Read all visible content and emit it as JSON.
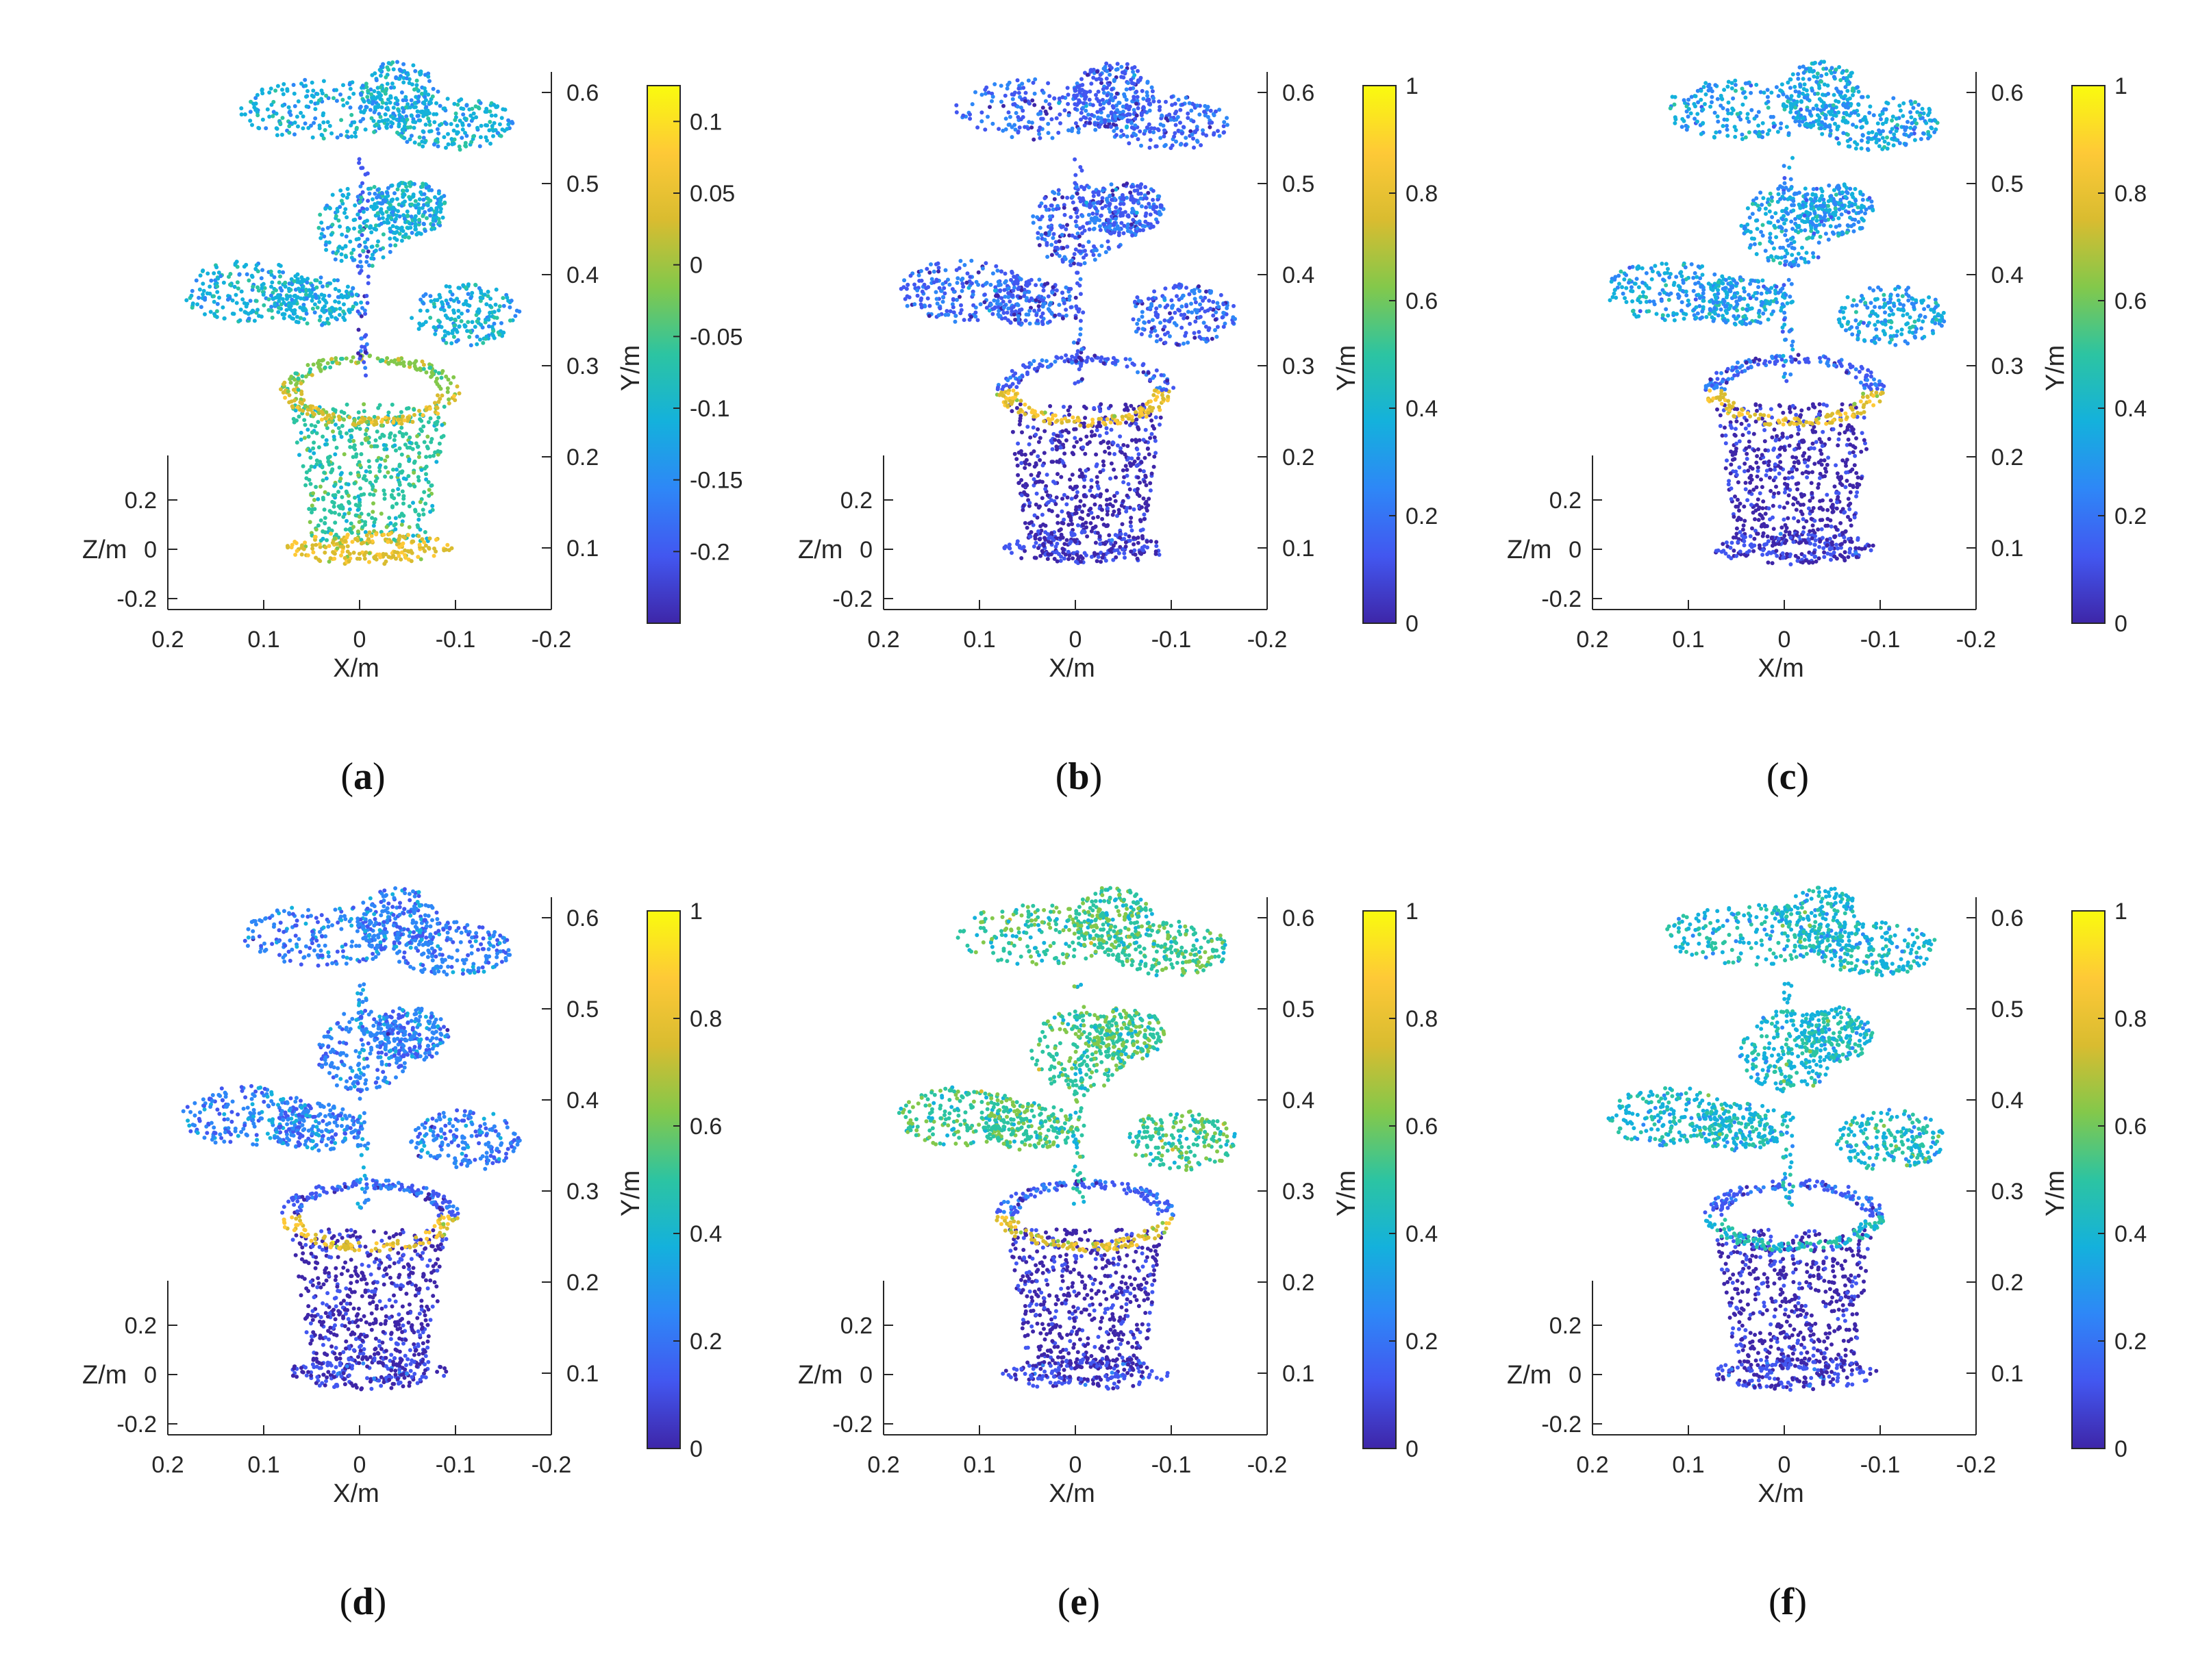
{
  "chart_data": [
    {
      "type": "scatter",
      "subtype": "3d-point-cloud",
      "panel": "a",
      "caption": "a",
      "xlabel": "X/m",
      "ylabel": "Y/m",
      "zlabel": "Z/m",
      "x_ticks": [
        "0.2",
        "0.1",
        "0",
        "-0.1",
        "-0.2"
      ],
      "y_ticks": [
        "0.1",
        "0.2",
        "0.3",
        "0.4",
        "0.5",
        "0.6"
      ],
      "z_ticks": [
        "0.2",
        "0",
        "-0.2"
      ],
      "colorbar": {
        "label": "Y/m",
        "range": [
          -0.25,
          0.125
        ],
        "ticks": [
          "0.1",
          "0.05",
          "0",
          "-0.05",
          "-0.1",
          "-0.15",
          "-0.2"
        ],
        "tick_values": [
          0.1,
          0.05,
          0,
          -0.05,
          -0.1,
          -0.15,
          -0.2
        ]
      },
      "colormap": [
        "#3e26a8",
        "#4257f0",
        "#2e87f7",
        "#14b1dc",
        "#2cc4a2",
        "#83c84b",
        "#d9bc30",
        "#fec937",
        "#f9fb0e"
      ],
      "colors": {
        "leaves": 3,
        "stem": 1,
        "pot_rim": 6,
        "pot_body": 4,
        "saucer": 6
      }
    },
    {
      "type": "scatter",
      "subtype": "3d-point-cloud",
      "panel": "b",
      "caption": "b",
      "xlabel": "X/m",
      "ylabel": "Y/m",
      "zlabel": "Z/m",
      "x_ticks": [
        "0.2",
        "0.1",
        "0",
        "-0.1",
        "-0.2"
      ],
      "y_ticks": [
        "0.1",
        "0.2",
        "0.3",
        "0.4",
        "0.5",
        "0.6"
      ],
      "z_ticks": [
        "0.2",
        "0",
        "-0.2"
      ],
      "colorbar": {
        "label": "Y/m",
        "range": [
          0,
          1
        ],
        "ticks": [
          "1",
          "0.8",
          "0.6",
          "0.4",
          "0.2",
          "0"
        ],
        "tick_values": [
          1,
          0.8,
          0.6,
          0.4,
          0.2,
          0
        ]
      },
      "colormap": [
        "#3e26a8",
        "#4257f0",
        "#2e87f7",
        "#14b1dc",
        "#2cc4a2",
        "#83c84b",
        "#d9bc30",
        "#fec937",
        "#f9fb0e"
      ],
      "colors": {
        "leaves": 1.3,
        "stem": 1,
        "pot_rim": 6.5,
        "pot_body": 0.2,
        "saucer": 0.3
      }
    },
    {
      "type": "scatter",
      "subtype": "3d-point-cloud",
      "panel": "c",
      "caption": "c",
      "xlabel": "X/m",
      "ylabel": "Y/m",
      "zlabel": "Z/m",
      "x_ticks": [
        "0.2",
        "0.1",
        "0",
        "-0.1",
        "-0.2"
      ],
      "y_ticks": [
        "0.1",
        "0.2",
        "0.3",
        "0.4",
        "0.5",
        "0.6"
      ],
      "z_ticks": [
        "0.2",
        "0",
        "-0.2"
      ],
      "colorbar": {
        "label": "Y/m",
        "range": [
          0,
          1
        ],
        "ticks": [
          "1",
          "0.8",
          "0.6",
          "0.4",
          "0.2",
          "0"
        ],
        "tick_values": [
          1,
          0.8,
          0.6,
          0.4,
          0.2,
          0
        ]
      },
      "colormap": [
        "#3e26a8",
        "#4257f0",
        "#2e87f7",
        "#14b1dc",
        "#2cc4a2",
        "#83c84b",
        "#d9bc30",
        "#fec937",
        "#f9fb0e"
      ],
      "colors": {
        "leaves": 2.6,
        "stem": 2.2,
        "pot_rim": 6.3,
        "pot_body": 0.2,
        "saucer": 0.3
      }
    },
    {
      "type": "scatter",
      "subtype": "3d-point-cloud",
      "panel": "d",
      "caption": "d",
      "xlabel": "X/m",
      "ylabel": "Y/m",
      "zlabel": "Z/m",
      "x_ticks": [
        "0.2",
        "0.1",
        "0",
        "-0.1",
        "-0.2"
      ],
      "y_ticks": [
        "0.1",
        "0.2",
        "0.3",
        "0.4",
        "0.5",
        "0.6"
      ],
      "z_ticks": [
        "0.2",
        "0",
        "-0.2"
      ],
      "colorbar": {
        "label": "Y/m",
        "range": [
          0,
          1
        ],
        "ticks": [
          "1",
          "0.8",
          "0.6",
          "0.4",
          "0.2",
          "0"
        ],
        "tick_values": [
          1,
          0.8,
          0.6,
          0.4,
          0.2,
          0
        ]
      },
      "colormap": [
        "#3e26a8",
        "#4257f0",
        "#2e87f7",
        "#14b1dc",
        "#2cc4a2",
        "#83c84b",
        "#d9bc30",
        "#fec937",
        "#f9fb0e"
      ],
      "colors": {
        "leaves": 1.8,
        "stem": 2.4,
        "pot_rim": 6.4,
        "pot_body": 0.2,
        "saucer": 0.3
      }
    },
    {
      "type": "scatter",
      "subtype": "3d-point-cloud",
      "panel": "e",
      "caption": "e",
      "xlabel": "X/m",
      "ylabel": "Y/m",
      "zlabel": "Z/m",
      "x_ticks": [
        "0.2",
        "0.1",
        "0",
        "-0.1",
        "-0.2"
      ],
      "y_ticks": [
        "0.1",
        "0.2",
        "0.3",
        "0.4",
        "0.5",
        "0.6"
      ],
      "z_ticks": [
        "0.2",
        "0",
        "-0.2"
      ],
      "colorbar": {
        "label": "Y/m",
        "range": [
          0,
          1
        ],
        "ticks": [
          "1",
          "0.8",
          "0.6",
          "0.4",
          "0.2",
          "0"
        ],
        "tick_values": [
          1,
          0.8,
          0.6,
          0.4,
          0.2,
          0
        ]
      },
      "colormap": [
        "#3e26a8",
        "#4257f0",
        "#2e87f7",
        "#14b1dc",
        "#2cc4a2",
        "#83c84b",
        "#d9bc30",
        "#fec937",
        "#f9fb0e"
      ],
      "colors": {
        "leaves": 4.2,
        "stem": 4,
        "pot_rim": 6,
        "pot_body": 0.2,
        "saucer": 0.3
      }
    },
    {
      "type": "scatter",
      "subtype": "3d-point-cloud",
      "panel": "f",
      "caption": "f",
      "xlabel": "X/m",
      "ylabel": "Y/m",
      "zlabel": "Z/m",
      "x_ticks": [
        "0.2",
        "0.1",
        "0",
        "-0.1",
        "-0.2"
      ],
      "y_ticks": [
        "0.1",
        "0.2",
        "0.3",
        "0.4",
        "0.5",
        "0.6"
      ],
      "z_ticks": [
        "0.2",
        "0",
        "-0.2"
      ],
      "colorbar": {
        "label": "Y/m",
        "range": [
          0,
          1
        ],
        "ticks": [
          "1",
          "0.8",
          "0.6",
          "0.4",
          "0.2",
          "0"
        ],
        "tick_values": [
          1,
          0.8,
          0.6,
          0.4,
          0.2,
          0
        ]
      },
      "colormap": [
        "#3e26a8",
        "#4257f0",
        "#2e87f7",
        "#14b1dc",
        "#2cc4a2",
        "#83c84b",
        "#d9bc30",
        "#fec937",
        "#f9fb0e"
      ],
      "colors": {
        "leaves": 3.3,
        "stem": 3.2,
        "pot_rim": 3.5,
        "pot_body": 0.2,
        "saucer": 0.3
      }
    }
  ]
}
